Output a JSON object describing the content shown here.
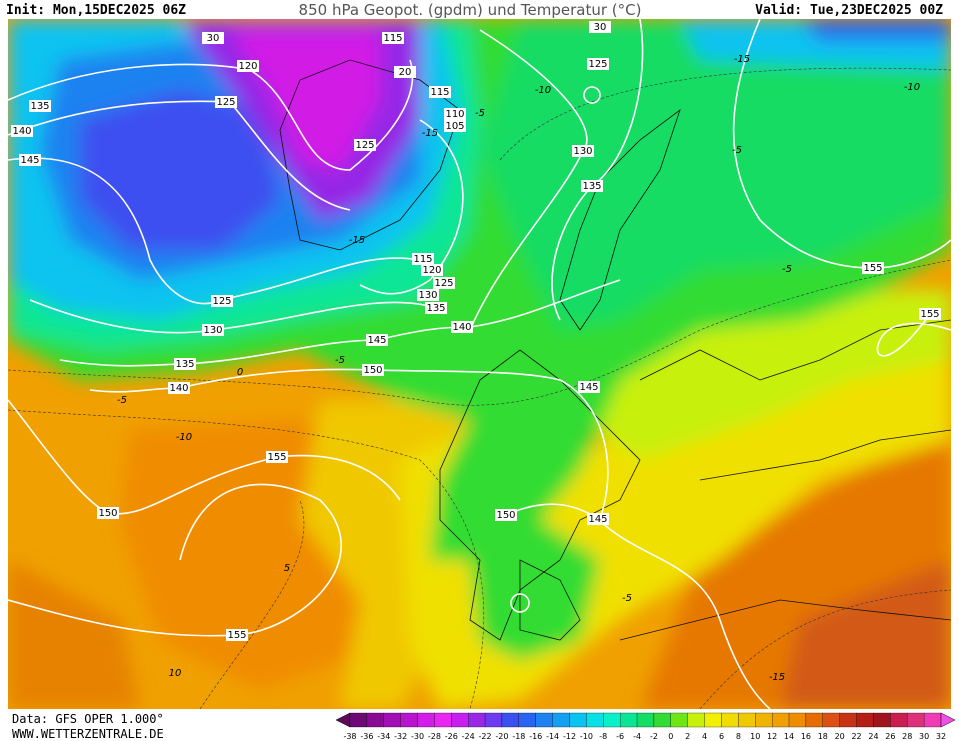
{
  "header": {
    "init": "Init: Mon,15DEC2025 06Z",
    "title": "850 hPa Geopot. (gpdm) und Temperatur (°C)",
    "valid": "Valid: Tue,23DEC2025 00Z"
  },
  "contour_labels": {
    "geopotential": [
      115,
      120,
      125,
      135,
      140,
      145,
      125,
      130,
      135,
      125,
      110,
      105,
      115,
      115,
      120,
      125,
      130,
      135,
      140,
      145,
      150,
      125,
      130,
      135,
      140,
      155,
      150,
      155,
      155,
      155,
      145,
      150,
      145,
      30,
      20,
      30
    ],
    "temperature": [
      -10,
      -15,
      -10,
      -5,
      -5,
      -5,
      -15,
      -5,
      -5,
      -10,
      5,
      -5,
      -15,
      10,
      0,
      -15
    ]
  },
  "color_scale": {
    "labels": [
      -38,
      -36,
      -34,
      -32,
      -30,
      -28,
      -26,
      -24,
      -22,
      -20,
      -18,
      -16,
      -14,
      -12,
      -10,
      -8,
      -6,
      -4,
      -2,
      0,
      2,
      4,
      6,
      8,
      10,
      12,
      14,
      16,
      18,
      20,
      22,
      24,
      26,
      28,
      30,
      32
    ],
    "colors": [
      "#5a0a5a",
      "#6e0a78",
      "#8a0a96",
      "#a010b4",
      "#b814cc",
      "#d21ee6",
      "#e628f0",
      "#c81ef0",
      "#9628e6",
      "#6e3cf0",
      "#3c50f0",
      "#2864f0",
      "#1e82f0",
      "#14a0f0",
      "#0ac3f0",
      "#0ae1e6",
      "#0af0c8",
      "#0ae696",
      "#14dc64",
      "#32dc32",
      "#6ee614",
      "#c8f00a",
      "#f0f000",
      "#f0dc00",
      "#f0c800",
      "#f0b400",
      "#f0a000",
      "#f08c00",
      "#e66e00",
      "#dc5014",
      "#c83214",
      "#b41e14",
      "#a0141e",
      "#c81e50",
      "#dc3278",
      "#f03cb4",
      "#f050e6"
    ]
  },
  "footer": {
    "data": "Data: GFS OPER 1.000°",
    "site": "WWW.WETTERZENTRALE.DE"
  }
}
